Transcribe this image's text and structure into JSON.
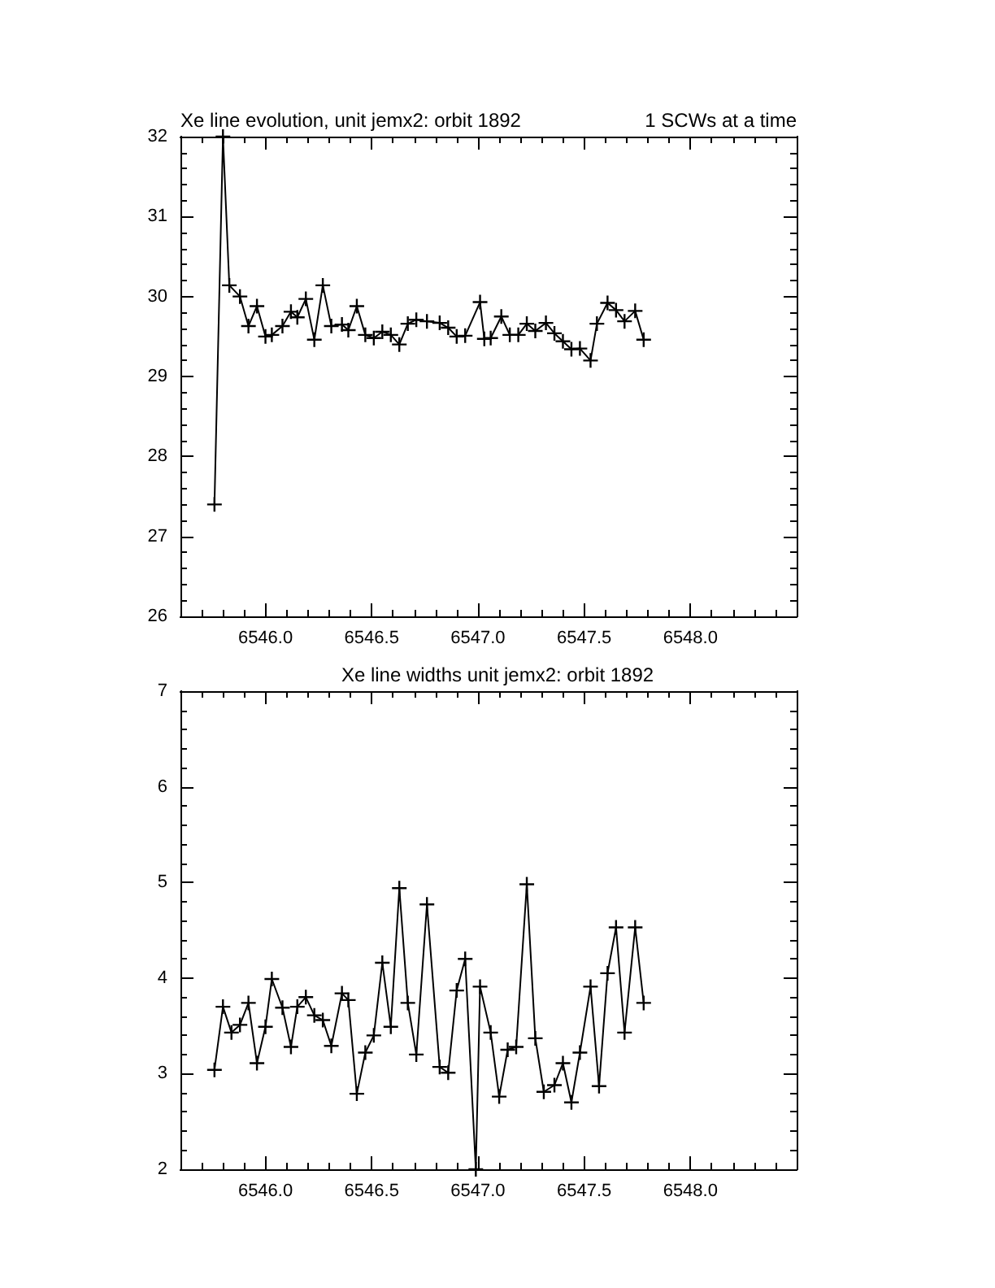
{
  "chart_data": [
    {
      "type": "line",
      "title": "Xe line evolution, unit jemx2: orbit 1892",
      "subtitle": "1 SCWs at a time",
      "marker": "cross",
      "line_style": "solid",
      "xlim": [
        6545.6,
        6548.5
      ],
      "xticks": [
        {
          "value": 6546,
          "label": "6546.0"
        },
        {
          "value": 6546.5,
          "label": "6546.5"
        },
        {
          "value": 6547,
          "label": "6547.0"
        },
        {
          "value": 6547.5,
          "label": "6547.5"
        },
        {
          "value": 6548,
          "label": "6548.0"
        }
      ],
      "ylim": [
        26,
        32
      ],
      "yticks": [
        26,
        27,
        28,
        29,
        30,
        31,
        32
      ],
      "series": [
        {
          "color": "#000000",
          "x": [
            6545.76,
            6545.8,
            6545.83,
            6545.88,
            6545.92,
            6545.96,
            6546.0,
            6546.03,
            6546.08,
            6546.12,
            6546.15,
            6546.19,
            6546.23,
            6546.27,
            6546.31,
            6546.36,
            6546.39,
            6546.43,
            6546.47,
            6546.51,
            6546.55,
            6546.59,
            6546.63,
            6546.67,
            6546.71,
            6546.76,
            6546.82,
            6546.86,
            6546.9,
            6546.94,
            6547.01,
            6547.03,
            6547.06,
            6547.11,
            6547.15,
            6547.19,
            6547.23,
            6547.27,
            6547.32,
            6547.36,
            6547.4,
            6547.44,
            6547.48,
            6547.53,
            6547.56,
            6547.61,
            6547.65,
            6547.69,
            6547.74,
            6547.78
          ],
          "values": [
            27.4,
            32,
            30.14,
            30.0,
            29.63,
            29.88,
            29.5,
            29.52,
            29.63,
            29.81,
            29.74,
            29.97,
            29.46,
            30.14,
            29.63,
            29.65,
            29.58,
            29.88,
            29.52,
            29.48,
            29.56,
            29.52,
            29.4,
            29.66,
            29.71,
            29.69,
            29.67,
            29.61,
            29.5,
            29.51,
            29.93,
            29.47,
            29.48,
            29.75,
            29.52,
            29.52,
            29.66,
            29.57,
            29.67,
            29.54,
            29.44,
            29.34,
            29.35,
            29.2,
            29.66,
            29.92,
            29.83,
            29.69,
            29.82,
            29.46
          ]
        }
      ]
    },
    {
      "type": "line",
      "title": "Xe line widths unit jemx2: orbit 1892",
      "marker": "cross",
      "line_style": "solid",
      "xlim": [
        6545.6,
        6548.5
      ],
      "xticks": [
        {
          "value": 6546,
          "label": "6546.0"
        },
        {
          "value": 6546.5,
          "label": "6546.5"
        },
        {
          "value": 6547,
          "label": "6547.0"
        },
        {
          "value": 6547.5,
          "label": "6547.5"
        },
        {
          "value": 6548,
          "label": "6548.0"
        }
      ],
      "ylim": [
        2,
        7
      ],
      "yticks": [
        2,
        3,
        4,
        5,
        6,
        7
      ],
      "series": [
        {
          "color": "#000000",
          "x": [
            6545.76,
            6545.8,
            6545.84,
            6545.88,
            6545.92,
            6545.96,
            6546.0,
            6546.03,
            6546.08,
            6546.12,
            6546.15,
            6546.19,
            6546.23,
            6546.27,
            6546.31,
            6546.36,
            6546.39,
            6546.43,
            6546.47,
            6546.51,
            6546.55,
            6546.59,
            6546.63,
            6546.67,
            6546.71,
            6546.76,
            6546.82,
            6546.86,
            6546.9,
            6546.94,
            6546.99,
            6547.01,
            6547.06,
            6547.1,
            6547.14,
            6547.18,
            6547.23,
            6547.27,
            6547.31,
            6547.36,
            6547.4,
            6547.44,
            6547.48,
            6547.53,
            6547.57,
            6547.61,
            6547.65,
            6547.69,
            6547.74,
            6547.78
          ],
          "values": [
            3.04,
            3.7,
            3.43,
            3.51,
            3.74,
            3.11,
            3.49,
            3.99,
            3.69,
            3.28,
            3.7,
            3.8,
            3.61,
            3.56,
            3.29,
            3.84,
            3.77,
            2.79,
            3.22,
            3.4,
            4.16,
            3.49,
            4.94,
            3.74,
            3.2,
            4.77,
            3.07,
            3.01,
            3.87,
            4.2,
            2,
            3.91,
            3.43,
            2.76,
            3.25,
            3.28,
            4.98,
            3.37,
            2.81,
            2.88,
            3.11,
            2.7,
            3.22,
            3.91,
            2.87,
            4.05,
            4.53,
            3.43,
            4.53,
            3.74
          ]
        }
      ]
    }
  ]
}
